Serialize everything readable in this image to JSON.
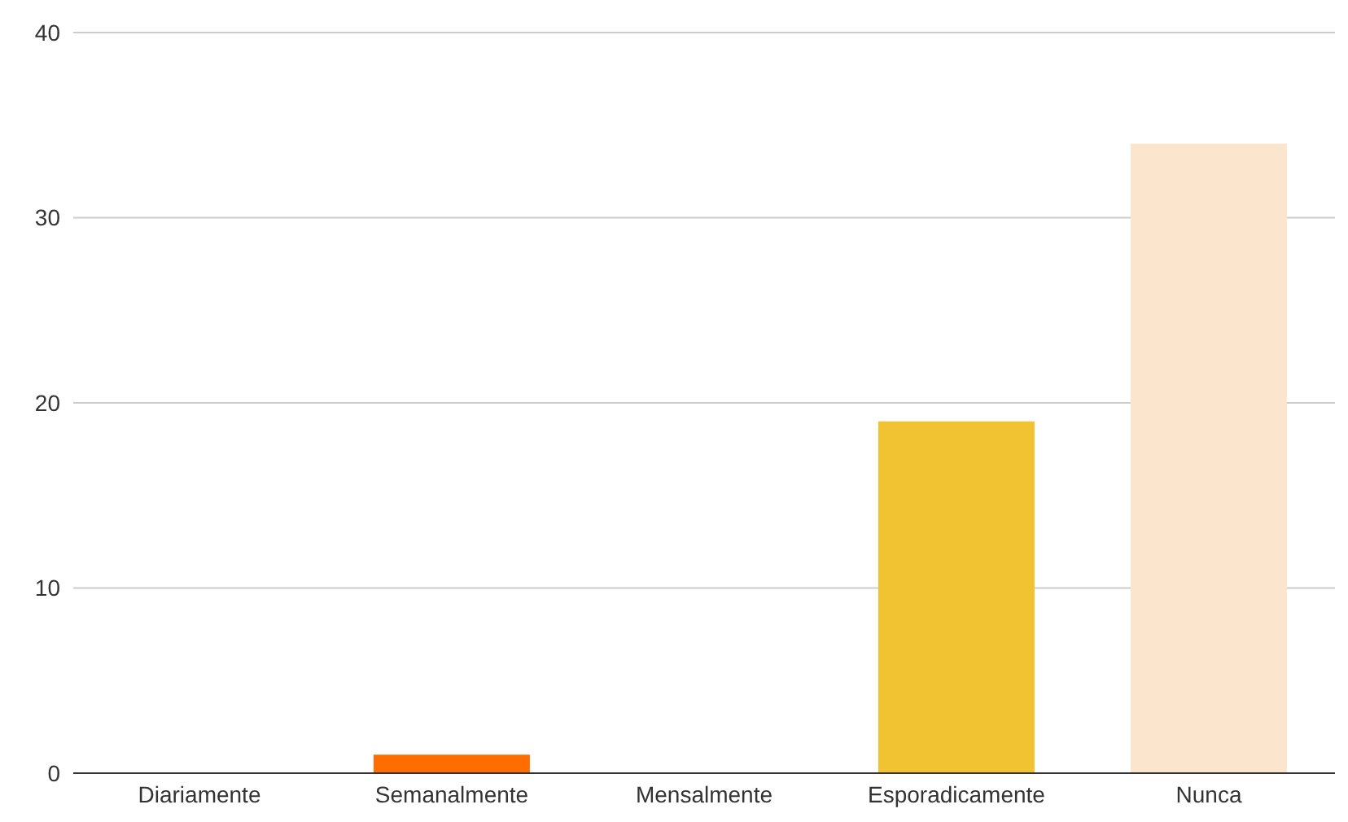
{
  "chart_data": {
    "type": "bar",
    "categories": [
      "Diariamente",
      "Semanalmente",
      "Mensalmente",
      "Esporadicamente",
      "Nunca"
    ],
    "values": [
      0,
      1,
      0,
      19,
      34
    ],
    "colors": [
      "#4285f4",
      "#ff6d01",
      "#46bdc6",
      "#f1c232",
      "#fce5cd"
    ],
    "ylim": [
      0,
      40
    ],
    "yticks": [
      0,
      10,
      20,
      30,
      40
    ],
    "grid": "y"
  }
}
